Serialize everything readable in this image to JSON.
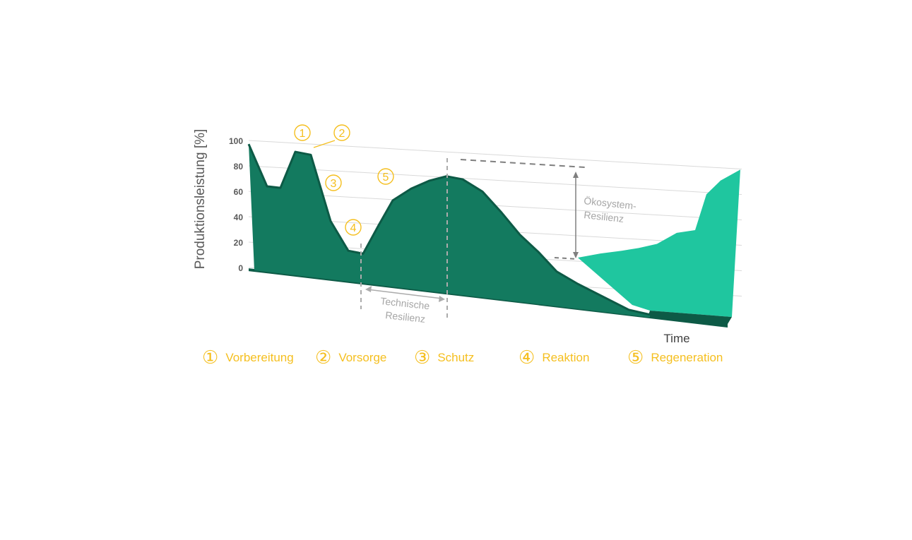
{
  "chart_data": {
    "type": "area",
    "ylabel": "Produktionsleistung [%]",
    "xlabel": "Time",
    "ylim": [
      0,
      100
    ],
    "yticks": [
      0,
      20,
      40,
      60,
      80,
      100
    ],
    "grid": true,
    "series": [
      {
        "y": [
          100,
          68,
          68,
          98,
          97,
          46,
          24,
          23,
          47,
          68,
          79,
          87,
          92,
          91,
          83,
          68,
          52,
          40,
          26,
          18,
          2,
          0
        ],
        "color": "#137A5F",
        "shadow_color": "#0D5A46"
      },
      {
        "y": [
          14,
          17,
          19,
          21,
          24,
          32,
          34,
          60,
          70,
          78
        ],
        "color": "#1FC69F"
      }
    ],
    "phase_markers": [
      {
        "label": "1"
      },
      {
        "label": "2"
      },
      {
        "label": "3"
      },
      {
        "label": "4"
      },
      {
        "label": "5"
      }
    ],
    "annotations": {
      "technische_line1": "Technische",
      "technische_line2": "Resilienz",
      "oekosystem_line1": "Ökosystem-",
      "oekosystem_line2": "Resilienz"
    },
    "colors": {
      "marker": "#F5BF1F",
      "annotation_text": "#A6A6A6",
      "dashed_line": "#ABABAB",
      "axis_text": "#595959",
      "grid": "#D9D9D9"
    }
  },
  "legend": [
    {
      "num": "①",
      "label": "Vorbereitung"
    },
    {
      "num": "②",
      "label": "Vorsorge"
    },
    {
      "num": "③",
      "label": "Schutz"
    },
    {
      "num": "④",
      "label": "Reaktion"
    },
    {
      "num": "⑤",
      "label": "Regeneration"
    }
  ]
}
